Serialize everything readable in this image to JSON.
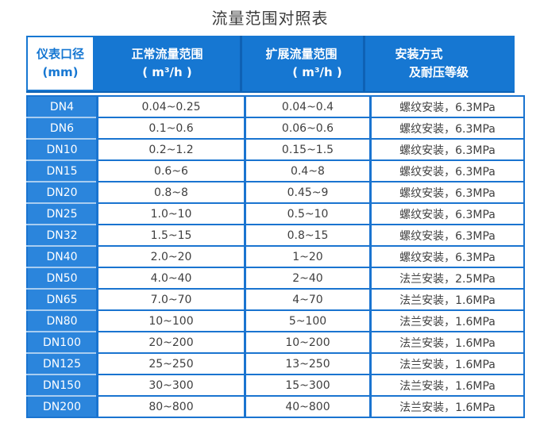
{
  "title": "流量范围对照表",
  "header": {
    "col1": {
      "line1": "仪表口径",
      "line2": "(mm)"
    },
    "col2": {
      "line1": "正常流量范围",
      "line2": "( m³/h )"
    },
    "col3": {
      "line1": "扩展流量范围",
      "line2": "( m³/h )"
    },
    "col4": {
      "line1": "安装方式",
      "line2": "及耐压等级"
    }
  },
  "colors": {
    "header_blue": "#1677d2",
    "row_label_blue": "#2b85dc",
    "border_blue": "#1a74d0",
    "header_divider_blue": "#0e61b4",
    "row_label_separator": "#a9cdf0",
    "text_dark": "#3f3f3f",
    "header_text": "#ffffff"
  },
  "chart_data": {
    "type": "table",
    "title": "流量范围对照表",
    "columns": [
      "仪表口径 (mm)",
      "正常流量范围 ( m³/h )",
      "扩展流量范围 ( m³/h )",
      "安装方式及耐压等级"
    ],
    "rows": [
      [
        "DN4",
        "0.04~0.25",
        "0.04~0.4",
        "螺纹安装，6.3MPa"
      ],
      [
        "DN6",
        "0.1~0.6",
        "0.06~0.6",
        "螺纹安装，6.3MPa"
      ],
      [
        "DN10",
        "0.2~1.2",
        "0.15~1.5",
        "螺纹安装，6.3MPa"
      ],
      [
        "DN15",
        "0.6~6",
        "0.4~8",
        "螺纹安装，6.3MPa"
      ],
      [
        "DN20",
        "0.8~8",
        "0.45~9",
        "螺纹安装，6.3MPa"
      ],
      [
        "DN25",
        "1.0~10",
        "0.5~10",
        "螺纹安装，6.3MPa"
      ],
      [
        "DN32",
        "1.5~15",
        "0.8~15",
        "螺纹安装，6.3MPa"
      ],
      [
        "DN40",
        "2.0~20",
        "1~20",
        "螺纹安装，6.3MPa"
      ],
      [
        "DN50",
        "4.0~40",
        "2~40",
        "法兰安装，2.5MPa"
      ],
      [
        "DN65",
        "7.0~70",
        "4~70",
        "法兰安装，1.6MPa"
      ],
      [
        "DN80",
        "10~100",
        "5~100",
        "法兰安装，1.6MPa"
      ],
      [
        "DN100",
        "20~200",
        "10~200",
        "法兰安装，1.6MPa"
      ],
      [
        "DN125",
        "25~250",
        "13~250",
        "法兰安装，1.6MPa"
      ],
      [
        "DN150",
        "30~300",
        "15~300",
        "法兰安装，1.6MPa"
      ],
      [
        "DN200",
        "80~800",
        "40~800",
        "法兰安装，1.6MPa"
      ]
    ]
  }
}
